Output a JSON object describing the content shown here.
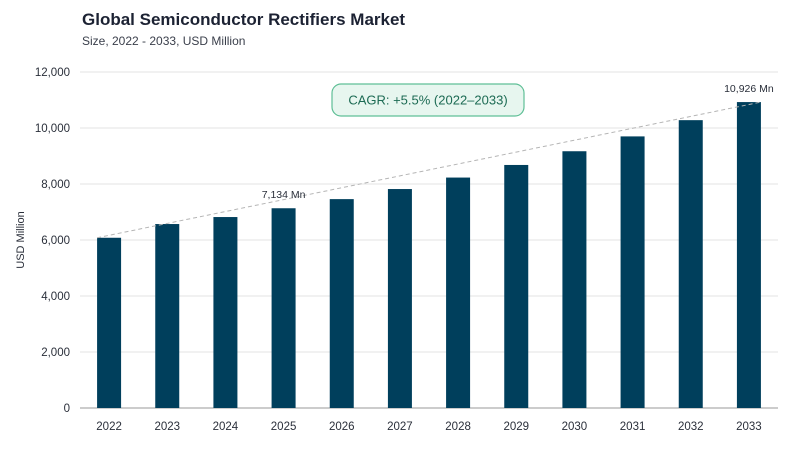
{
  "header": {
    "title": "Global Semiconductor Rectifiers Market",
    "subtitle": "Size, 2022 - 2033, USD Million"
  },
  "chart_data": {
    "type": "bar",
    "title": "Global Semiconductor Rectifiers Market",
    "subtitle": "Size, 2022 - 2033, USD Million",
    "xlabel": "",
    "ylabel": "USD Million",
    "categories": [
      "2022",
      "2023",
      "2024",
      "2025",
      "2026",
      "2027",
      "2028",
      "2029",
      "2030",
      "2031",
      "2032",
      "2033"
    ],
    "values": [
      6080,
      6570,
      6820,
      7134,
      7460,
      7820,
      8230,
      8680,
      9170,
      9700,
      10280,
      10926
    ],
    "ylim": [
      0,
      12000
    ],
    "yticks": [
      0,
      2000,
      4000,
      6000,
      8000,
      10000,
      12000
    ],
    "ytick_labels": [
      "0",
      "2,000",
      "4,000",
      "6,000",
      "8,000",
      "10,000",
      "12,000"
    ],
    "grid": true,
    "bar_color": "#003f5c",
    "trend_line": {
      "from_category": "2022",
      "to_category": "2033",
      "style": "dashed",
      "color": "#b5b5b5"
    },
    "data_labels": [
      {
        "category": "2025",
        "text": "7,134 Mn"
      },
      {
        "category": "2033",
        "text": "10,926 Mn"
      }
    ],
    "annotation": {
      "text": "CAGR: +5.5% (2022–2033)",
      "fill": "#e7f6ef",
      "border": "#5fbf96",
      "text_color": "#1d6b54"
    }
  }
}
